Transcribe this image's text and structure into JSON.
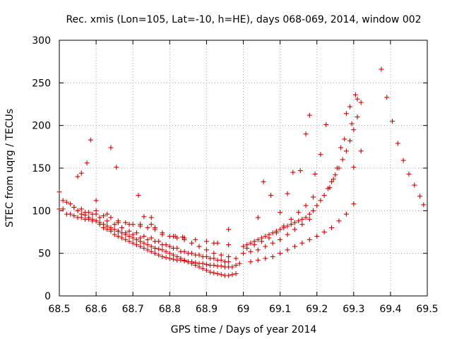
{
  "chart_data": {
    "type": "scatter",
    "title": "Rec. xmis (Lon=105, Lat=-10, h=HE), days 068-069, 2014, window 002",
    "xlabel": "GPS time / Days of year 2014",
    "ylabel": "STEC from uqrg / TECUs",
    "xlim": [
      68.5,
      69.5
    ],
    "ylim": [
      0,
      300
    ],
    "xticks": [
      68.5,
      68.6,
      68.7,
      68.8,
      68.9,
      69.0,
      69.1,
      69.2,
      69.3,
      69.4,
      69.5
    ],
    "xtick_labels": [
      "68.5",
      "68.6",
      "68.7",
      "68.8",
      "68.9",
      "69",
      "69.1",
      "69.2",
      "69.3",
      "69.4",
      "69.5"
    ],
    "yticks": [
      0,
      50,
      100,
      150,
      200,
      250,
      300
    ],
    "ytick_labels": [
      "0",
      "50",
      "100",
      "150",
      "200",
      "250",
      "300"
    ],
    "grid": true,
    "marker": "plus",
    "color": "#d40000",
    "series": [
      {
        "name": "STEC",
        "x": [
          68.5,
          68.51,
          68.52,
          68.53,
          68.54,
          68.55,
          68.56,
          68.57,
          68.58,
          68.59,
          68.6,
          68.61,
          68.62,
          68.63,
          68.64,
          68.65,
          68.66,
          68.67,
          68.68,
          68.69,
          68.7,
          68.71,
          68.72,
          68.73,
          68.74,
          68.75,
          68.76,
          68.77,
          68.78,
          68.79,
          68.8,
          68.81,
          68.82,
          68.83,
          68.84,
          68.85,
          68.86,
          68.87,
          68.88,
          68.89,
          68.9,
          68.91,
          68.92,
          68.93,
          68.94,
          68.95,
          68.96,
          68.97,
          68.98,
          68.99,
          68.5,
          68.51,
          68.52,
          68.53,
          68.54,
          68.55,
          68.56,
          68.57,
          68.58,
          68.59,
          68.6,
          68.61,
          68.62,
          68.63,
          68.64,
          68.65,
          68.66,
          68.67,
          68.68,
          68.69,
          68.7,
          68.71,
          68.72,
          68.73,
          68.74,
          68.75,
          68.76,
          68.77,
          68.78,
          68.79,
          68.8,
          68.81,
          68.82,
          68.83,
          68.84,
          68.85,
          68.86,
          68.87,
          68.88,
          68.89,
          68.9,
          68.91,
          68.92,
          68.93,
          68.94,
          68.95,
          68.96,
          68.97,
          68.98,
          68.55,
          68.57,
          68.59,
          68.61,
          68.63,
          68.65,
          68.67,
          68.69,
          68.71,
          68.73,
          68.75,
          68.77,
          68.79,
          68.81,
          68.83,
          68.85,
          68.87,
          68.89,
          68.91,
          68.93,
          68.95,
          68.62,
          68.64,
          68.66,
          68.68,
          68.7,
          68.72,
          68.74,
          68.76,
          68.78,
          68.8,
          68.82,
          68.84,
          68.86,
          68.88,
          68.9,
          68.92,
          68.94,
          68.96,
          68.54,
          68.56,
          68.58,
          68.6,
          68.62,
          68.64,
          68.66,
          68.68,
          68.7,
          68.72,
          68.74,
          68.76,
          68.78,
          68.8,
          68.82,
          68.84,
          68.86,
          68.88,
          68.9,
          68.92,
          68.94,
          68.96,
          68.98,
          68.6,
          68.63,
          68.66,
          68.69,
          68.72,
          68.75,
          68.78,
          68.81,
          68.84,
          68.87,
          68.9,
          68.93,
          68.96,
          68.55,
          68.56,
          68.575,
          68.585,
          68.6,
          68.64,
          68.655,
          68.715,
          68.73,
          68.75,
          68.76,
          68.815,
          68.835,
          68.92,
          68.96,
          69.0,
          69.01,
          69.02,
          69.03,
          69.04,
          69.05,
          69.06,
          69.07,
          69.08,
          69.09,
          69.1,
          69.11,
          69.12,
          69.13,
          69.14,
          69.15,
          69.16,
          69.17,
          69.18,
          69.19,
          69.2,
          69.21,
          69.22,
          69.23,
          69.24,
          69.25,
          69.26,
          69.27,
          69.28,
          69.29,
          69.3,
          69.31,
          69.02,
          69.04,
          69.06,
          69.08,
          69.1,
          69.12,
          69.14,
          69.16,
          69.18,
          69.2,
          69.22,
          69.24,
          69.26,
          69.28,
          69.3,
          69.0,
          69.02,
          69.04,
          69.06,
          69.08,
          69.1,
          69.12,
          69.14,
          69.16,
          69.18,
          69.01,
          69.03,
          69.05,
          69.07,
          69.09,
          69.11,
          69.13,
          69.15,
          69.17,
          69.19,
          69.04,
          69.055,
          69.075,
          69.1,
          69.12,
          69.135,
          69.155,
          69.17,
          69.18,
          69.195,
          69.21,
          69.225,
          69.235,
          69.245,
          69.255,
          69.265,
          69.275,
          69.28,
          69.29,
          69.295,
          69.3,
          69.305,
          69.31,
          69.32,
          69.32,
          69.375,
          69.39,
          69.405,
          69.42,
          69.435,
          69.45,
          69.465,
          69.48,
          69.49
        ],
        "y": [
          122,
          102,
          96,
          96,
          94,
          92,
          92,
          90,
          90,
          88,
          88,
          84,
          80,
          78,
          76,
          72,
          70,
          68,
          66,
          64,
          62,
          60,
          58,
          56,
          54,
          52,
          50,
          48,
          46,
          45,
          44,
          43,
          42,
          42,
          41,
          40,
          40,
          39,
          38,
          38,
          37,
          36,
          36,
          35,
          35,
          34,
          34,
          34,
          36,
          38,
          102,
          112,
          110,
          108,
          104,
          100,
          96,
          95,
          92,
          90,
          88,
          86,
          84,
          82,
          80,
          78,
          76,
          74,
          72,
          70,
          68,
          66,
          64,
          62,
          60,
          58,
          56,
          55,
          54,
          52,
          50,
          48,
          46,
          44,
          42,
          40,
          38,
          36,
          34,
          32,
          30,
          28,
          27,
          26,
          25,
          24,
          24,
          25,
          26,
          100,
          98,
          96,
          92,
          88,
          84,
          80,
          76,
          74,
          70,
          68,
          64,
          60,
          56,
          52,
          50,
          48,
          46,
          44,
          42,
          40,
          80,
          78,
          76,
          74,
          72,
          68,
          66,
          64,
          60,
          58,
          56,
          52,
          50,
          48,
          46,
          44,
          42,
          40,
          104,
          102,
          98,
          96,
          94,
          92,
          88,
          86,
          84,
          82,
          80,
          78,
          74,
          70,
          68,
          66,
          62,
          58,
          54,
          50,
          48,
          46,
          44,
          100,
          96,
          86,
          84,
          84,
          84,
          72,
          70,
          68,
          66,
          64,
          62,
          60,
          140,
          144,
          156,
          183,
          112,
          174,
          151,
          118,
          93,
          92,
          80,
          70,
          69,
          62,
          78,
          58,
          60,
          62,
          64,
          66,
          68,
          70,
          72,
          74,
          76,
          78,
          80,
          82,
          84,
          86,
          88,
          90,
          92,
          96,
          100,
          106,
          112,
          118,
          126,
          134,
          142,
          150,
          160,
          170,
          182,
          195,
          210,
          40,
          42,
          44,
          46,
          50,
          54,
          58,
          62,
          66,
          70,
          75,
          80,
          88,
          96,
          108,
          50,
          52,
          54,
          58,
          62,
          66,
          72,
          78,
          84,
          90,
          56,
          60,
          64,
          68,
          74,
          82,
          90,
          98,
          106,
          116,
          92,
          134,
          118,
          98,
          120,
          145,
          147,
          190,
          212,
          143,
          166,
          201,
          127,
          137,
          150,
          174,
          184,
          214,
          222,
          202,
          151,
          236,
          231,
          227,
          170,
          266,
          233,
          205,
          179,
          159,
          143,
          130,
          117,
          107
        ]
      }
    ]
  }
}
